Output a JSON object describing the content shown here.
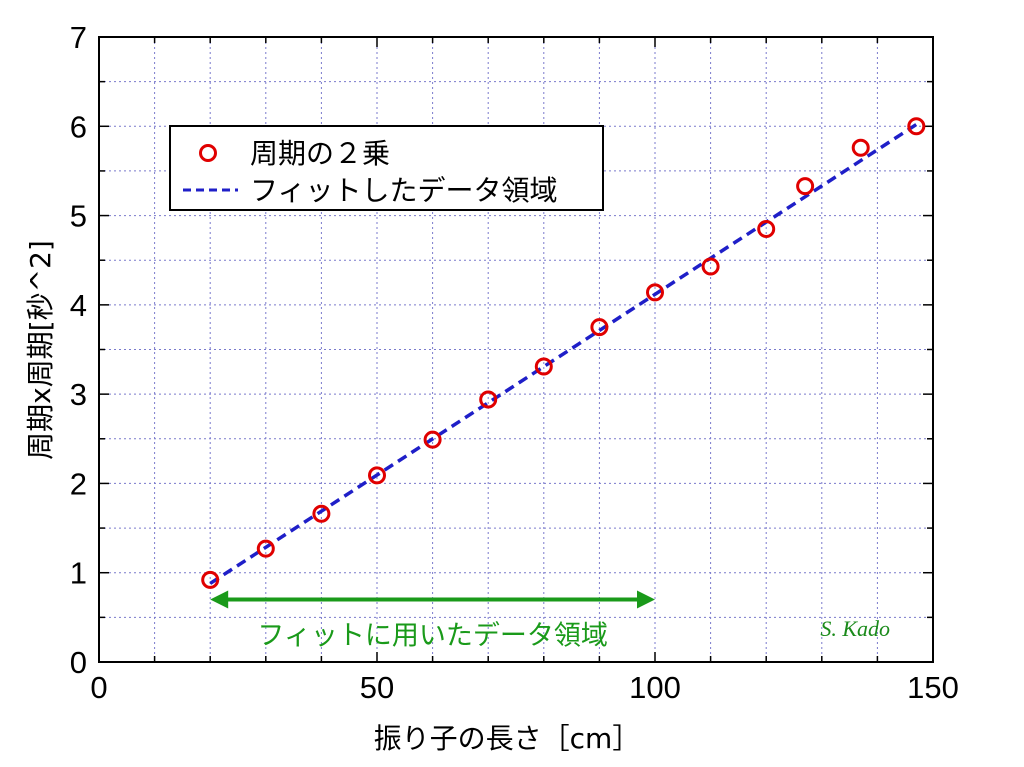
{
  "chart_data": {
    "type": "scatter",
    "xlabel": "振り子の長さ［cm］",
    "ylabel": "周期x周期[秒^2]",
    "xlim": [
      0,
      150
    ],
    "ylim": [
      0,
      7
    ],
    "xticks": [
      0,
      50,
      100,
      150
    ],
    "yticks": [
      0,
      1,
      2,
      3,
      4,
      5,
      6,
      7
    ],
    "grid": true,
    "legend_position": "top-left",
    "series": [
      {
        "name": "周期の２乗",
        "kind": "scatter",
        "marker": "open-circle",
        "color": "#e00000",
        "points": [
          {
            "x": 20,
            "y": 0.92
          },
          {
            "x": 30,
            "y": 1.27
          },
          {
            "x": 40,
            "y": 1.66
          },
          {
            "x": 50,
            "y": 2.09
          },
          {
            "x": 60,
            "y": 2.49
          },
          {
            "x": 70,
            "y": 2.94
          },
          {
            "x": 80,
            "y": 3.31
          },
          {
            "x": 90,
            "y": 3.75
          },
          {
            "x": 100,
            "y": 4.14
          },
          {
            "x": 110,
            "y": 4.43
          },
          {
            "x": 120,
            "y": 4.85
          },
          {
            "x": 127,
            "y": 5.33
          },
          {
            "x": 137,
            "y": 5.76
          },
          {
            "x": 147,
            "y": 6.0
          }
        ]
      },
      {
        "name": "フィットしたデータ領域",
        "kind": "line",
        "style": "dashed",
        "color": "#1f1fc8",
        "points": [
          {
            "x": 20,
            "y": 0.88
          },
          {
            "x": 147,
            "y": 6.02
          }
        ]
      }
    ],
    "annotations": [
      {
        "text": "フィットに用いたデータ領域",
        "type": "double-arrow",
        "color": "#1a9a1a",
        "x_start": 20,
        "x_end": 100,
        "y": 0.7
      },
      {
        "text": "S. Kado",
        "color": "#1a8a1a",
        "x": 136,
        "y": 0.38
      }
    ]
  }
}
